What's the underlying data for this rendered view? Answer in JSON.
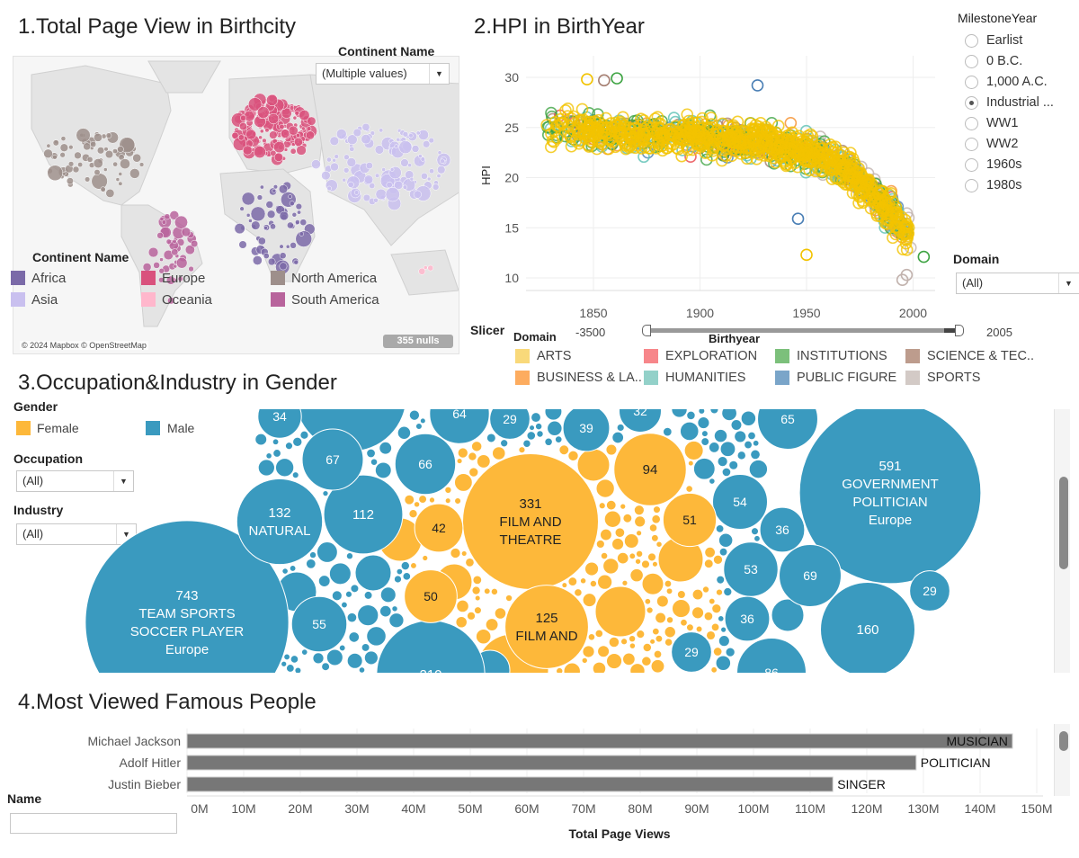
{
  "map": {
    "title": "1.Total Page View in Birthcity",
    "filter_label": "Continent Name",
    "filter_value": "(Multiple values)",
    "legend_title": "Continent Name",
    "legend": [
      {
        "name": "Africa",
        "color": "#7b6aa8"
      },
      {
        "name": "Asia",
        "color": "#c9c0ef"
      },
      {
        "name": "Europe",
        "color": "#d9527d"
      },
      {
        "name": "Oceania",
        "color": "#ffb7cc"
      },
      {
        "name": "North America",
        "color": "#9e8f8b"
      },
      {
        "name": "South America",
        "color": "#b8649c"
      }
    ],
    "attribution": "© 2024 Mapbox © OpenStreetMap",
    "nulls": "355 nulls"
  },
  "scatter": {
    "title": "2.HPI in BirthYear",
    "milestone_label": "MilestoneYear",
    "milestones": [
      {
        "label": "Earlist",
        "selected": false
      },
      {
        "label": "0 B.C.",
        "selected": false
      },
      {
        "label": "1,000 A.C.",
        "selected": false
      },
      {
        "label": "Industrial ...",
        "selected": true
      },
      {
        "label": "WW1",
        "selected": false
      },
      {
        "label": "WW2",
        "selected": false
      },
      {
        "label": "1960s",
        "selected": false
      },
      {
        "label": "1980s",
        "selected": false
      }
    ],
    "domain_filter_label": "Domain",
    "domain_filter_value": "(All)",
    "slicer": {
      "label": "Slicer",
      "field": "Birthyear",
      "min": "-3500",
      "max": "2005"
    },
    "legend_title": "Domain",
    "legend": [
      {
        "name": "ARTS",
        "color": "#f9d97a",
        "stroke": "#f2c300"
      },
      {
        "name": "EXPLORATION",
        "color": "#f7868a",
        "stroke": "#e9484e"
      },
      {
        "name": "INSTITUTIONS",
        "color": "#7cc07b",
        "stroke": "#3fa444"
      },
      {
        "name": "SCIENCE & TEC..",
        "color": "#bd9c8d",
        "stroke": "#a57f72"
      },
      {
        "name": "BUSINESS & LA..",
        "color": "#fdac5f",
        "stroke": "#f58f2a"
      },
      {
        "name": "HUMANITIES",
        "color": "#93d1c9",
        "stroke": "#5bc0b4"
      },
      {
        "name": "PUBLIC FIGURE",
        "color": "#7aa5c9",
        "stroke": "#4a7fb5"
      },
      {
        "name": "SPORTS",
        "color": "#d3cac6",
        "stroke": "#c2b3ae"
      }
    ]
  },
  "chart_data": [
    {
      "type": "scatter",
      "title": "2.HPI in BirthYear",
      "xlabel": "",
      "ylabel": "HPI",
      "xlim": [
        1822,
        2015
      ],
      "ylim": [
        8,
        31
      ],
      "x_ticks": [
        1850,
        1900,
        1950,
        2000
      ],
      "y_ticks": [
        10,
        15,
        20,
        25,
        30
      ],
      "grid": true,
      "trend": [
        [
          1828,
          25
        ],
        [
          1850,
          24.6
        ],
        [
          1875,
          24.3
        ],
        [
          1900,
          24
        ],
        [
          1925,
          23.6
        ],
        [
          1945,
          23
        ],
        [
          1960,
          21.8
        ],
        [
          1970,
          20.5
        ],
        [
          1980,
          18.6
        ],
        [
          1990,
          16.5
        ],
        [
          2000,
          14
        ]
      ],
      "outliers": [
        [
          1861,
          29.9,
          "INSTITUTIONS"
        ],
        [
          1855,
          29.7,
          "SCIENCE & TEC.."
        ],
        [
          1847,
          29.8,
          "ARTS"
        ],
        [
          1927,
          29.2,
          "PUBLIC FIGURE"
        ],
        [
          1950,
          12.3,
          "ARTS"
        ],
        [
          1946,
          15.9,
          "PUBLIC FIGURE"
        ],
        [
          2005,
          12.1,
          "INSTITUTIONS"
        ],
        [
          1995,
          9.8,
          "SPORTS"
        ],
        [
          1997,
          10.3,
          "SPORTS"
        ]
      ]
    },
    {
      "type": "bubble",
      "title": "3.Occupation&Industry in Gender",
      "legend_title": "Gender",
      "legend": [
        {
          "name": "Female",
          "color": "#fdb83a"
        },
        {
          "name": "Male",
          "color": "#3a9abf"
        }
      ],
      "bubbles": [
        {
          "value": "743",
          "lines": [
            "TEAM SPORTS",
            "SOCCER PLAYER",
            "Europe"
          ],
          "gender": "Male"
        },
        {
          "value": "591",
          "lines": [
            "GOVERNMENT",
            "POLITICIAN",
            "Europe"
          ],
          "gender": "Male"
        },
        {
          "value": "331",
          "lines": [
            "FILM AND",
            "THEATRE"
          ],
          "gender": "Female"
        },
        {
          "value": "210",
          "lines": [],
          "gender": "Male"
        },
        {
          "value": "160",
          "lines": [],
          "gender": "Male"
        },
        {
          "value": "132",
          "lines": [
            "NATURAL"
          ],
          "gender": "Male"
        },
        {
          "value": "125",
          "lines": [
            "FILM AND"
          ],
          "gender": "Female"
        },
        {
          "value": "112",
          "lines": [],
          "gender": "Male"
        },
        {
          "value": "94",
          "lines": [],
          "gender": "Female"
        },
        {
          "value": "86",
          "lines": [],
          "gender": "Male"
        },
        {
          "value": "69",
          "lines": [],
          "gender": "Male"
        },
        {
          "value": "67",
          "lines": [],
          "gender": "Male"
        },
        {
          "value": "66",
          "lines": [],
          "gender": "Male"
        },
        {
          "value": "65",
          "lines": [],
          "gender": "Male"
        },
        {
          "value": "64",
          "lines": [],
          "gender": "Male"
        },
        {
          "value": "55",
          "lines": [],
          "gender": "Male"
        },
        {
          "value": "54",
          "lines": [],
          "gender": "Male"
        },
        {
          "value": "53",
          "lines": [],
          "gender": "Male"
        },
        {
          "value": "51",
          "lines": [],
          "gender": "Female"
        },
        {
          "value": "50",
          "lines": [],
          "gender": "Female"
        },
        {
          "value": "42",
          "lines": [],
          "gender": "Female"
        },
        {
          "value": "39",
          "lines": [],
          "gender": "Male"
        },
        {
          "value": "36",
          "lines": [],
          "gender": "Male"
        },
        {
          "value": "36",
          "lines": [],
          "gender": "Male"
        },
        {
          "value": "34",
          "lines": [],
          "gender": "Male"
        },
        {
          "value": "32",
          "lines": [],
          "gender": "Male"
        },
        {
          "value": "29",
          "lines": [],
          "gender": "Male"
        },
        {
          "value": "29",
          "lines": [],
          "gender": "Male"
        },
        {
          "value": "29",
          "lines": [],
          "gender": "Male"
        }
      ]
    },
    {
      "type": "bar",
      "orientation": "horizontal",
      "title": "4.Most Viewed Famous People",
      "xlabel": "Total Page Views",
      "xlim": [
        0,
        150
      ],
      "x_unit": "M",
      "x_ticks": [
        "0M",
        "10M",
        "20M",
        "30M",
        "40M",
        "50M",
        "60M",
        "70M",
        "80M",
        "90M",
        "100M",
        "110M",
        "120M",
        "130M",
        "140M",
        "150M"
      ],
      "categories": [
        "Michael Jackson",
        "Adolf Hitler",
        "Justin Bieber"
      ],
      "values": [
        145.7,
        128.7,
        114
      ],
      "labels": [
        "MUSICIAN",
        "POLITICIAN",
        "SINGER"
      ],
      "color": "#777777"
    }
  ],
  "bubble": {
    "gender_label": "Gender",
    "occupation_label": "Occupation",
    "occupation_value": "(All)",
    "industry_label": "Industry",
    "industry_value": "(All)"
  },
  "bars": {
    "name_label": "Name",
    "name_value": ""
  }
}
